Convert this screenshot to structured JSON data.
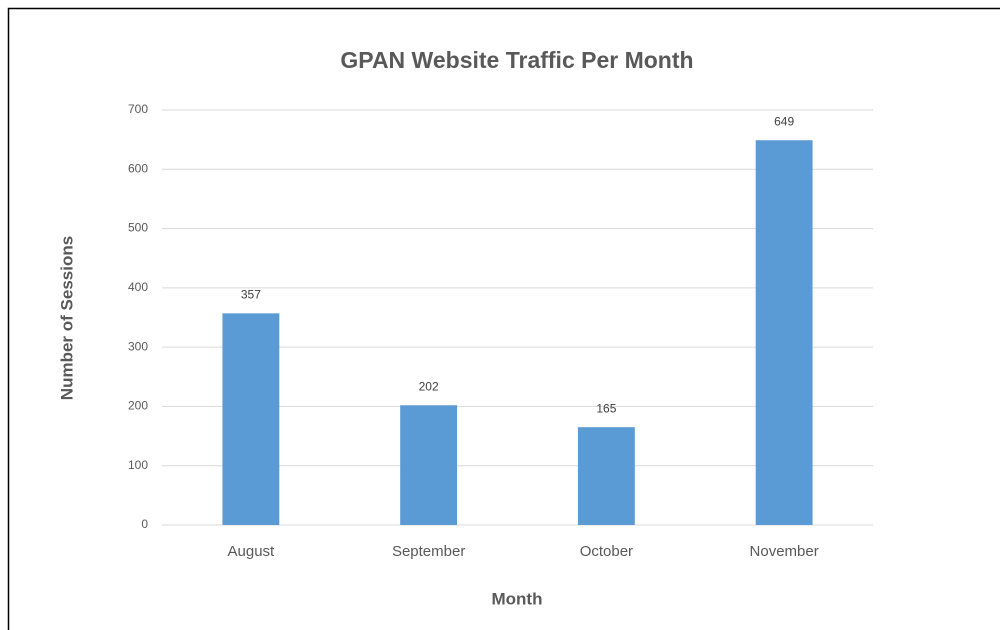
{
  "chart_data": {
    "type": "bar",
    "title": "GPAN Website Traffic Per Month",
    "x_label": "Month",
    "y_label": "Number of Sessions",
    "categories": [
      "August",
      "September",
      "October",
      "November"
    ],
    "values": [
      357,
      202,
      165,
      649
    ],
    "color": "#5b9bd5",
    "ylim": [
      0,
      700
    ],
    "yticks": [
      0,
      100,
      200,
      300,
      400,
      500,
      600,
      700
    ],
    "grid": true
  }
}
